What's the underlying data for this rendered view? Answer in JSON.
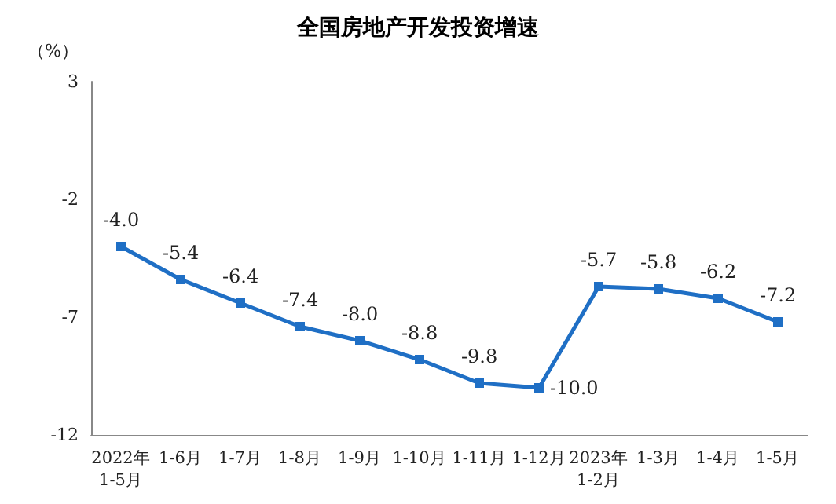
{
  "chart_data": {
    "type": "line",
    "title": "全国房地产开发投资增速",
    "ylabel": "（%）",
    "categories": [
      "2022年\n1-5月",
      "1-6月",
      "1-7月",
      "1-8月",
      "1-9月",
      "1-10月",
      "1-11月",
      "1-12月",
      "2023年\n1-2月",
      "1-3月",
      "1-4月",
      "1-5月"
    ],
    "series": [
      {
        "color": "#1f6fc5",
        "values": [
          -4.0,
          -5.4,
          -6.4,
          -7.4,
          -8.0,
          -8.8,
          -9.8,
          -10.0,
          -5.7,
          -5.8,
          -6.2,
          -7.2
        ],
        "value_labels": [
          "-4.0",
          "-5.4",
          "-6.4",
          "-7.4",
          "-8.0",
          "-8.8",
          "-9.8",
          "-10.0",
          "-5.7",
          "-5.8",
          "-6.2",
          "-7.2"
        ]
      }
    ],
    "ylim": [
      -12,
      3
    ],
    "yticks": [
      -12,
      -7,
      -2,
      3
    ],
    "grid": false,
    "marker": "square",
    "line_style": "solid"
  }
}
